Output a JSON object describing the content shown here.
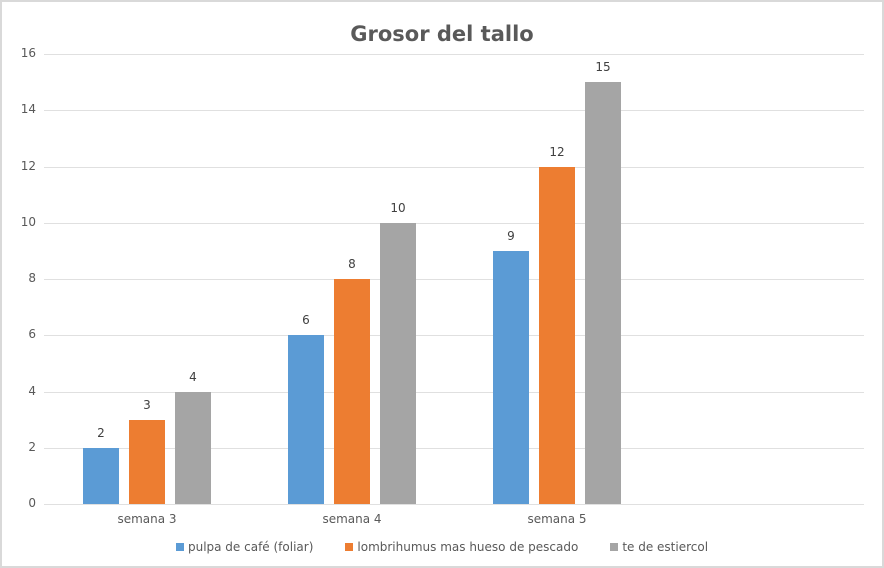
{
  "chart_data": {
    "type": "bar",
    "title": "Grosor del tallo",
    "xlabel": "",
    "ylabel": "",
    "categories": [
      "semana 3",
      "semana 4",
      "semana 5"
    ],
    "series": [
      {
        "name": "pulpa de café (foliar)",
        "color": "#5b9bd5",
        "values": [
          2,
          6,
          9
        ]
      },
      {
        "name": "lombrihumus mas hueso de pescado",
        "color": "#ed7d31",
        "values": [
          3,
          8,
          12
        ]
      },
      {
        "name": "te de estiercol",
        "color": "#a5a5a5",
        "values": [
          4,
          10,
          15
        ]
      }
    ],
    "ylim": [
      0,
      16
    ],
    "yticks": [
      0,
      2,
      4,
      6,
      8,
      10,
      12,
      14,
      16
    ],
    "grid": true,
    "data_labels": true,
    "legend_position": "bottom"
  }
}
